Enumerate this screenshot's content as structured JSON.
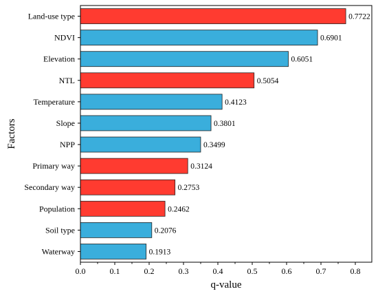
{
  "chart_data": {
    "type": "bar",
    "orientation": "horizontal",
    "categories": [
      "Land-use type",
      "NDVI",
      "Elevation",
      "NTL",
      "Temperature",
      "Slope",
      "NPP",
      "Primary way",
      "Secondary way",
      "Population",
      "Soil type",
      "Waterway"
    ],
    "values": [
      0.7722,
      0.6901,
      0.6051,
      0.5054,
      0.4123,
      0.3801,
      0.3499,
      0.3124,
      0.2753,
      0.2462,
      0.2076,
      0.1913
    ],
    "value_labels": [
      "0.7722",
      "0.6901",
      "0.6051",
      "0.5054",
      "0.4123",
      "0.3801",
      "0.3499",
      "0.3124",
      "0.2753",
      "0.2462",
      "0.2076",
      "0.1913"
    ],
    "bar_colors": [
      "#ff3b30",
      "#3aaedc",
      "#3aaedc",
      "#ff3b30",
      "#3aaedc",
      "#3aaedc",
      "#3aaedc",
      "#ff3b30",
      "#ff3b30",
      "#ff3b30",
      "#3aaedc",
      "#3aaedc"
    ],
    "xlabel": "q-value",
    "ylabel": "Factors",
    "xlim": [
      0,
      0.85
    ],
    "xticks": [
      0.0,
      0.1,
      0.2,
      0.3,
      0.4,
      0.5,
      0.6,
      0.7,
      0.8
    ],
    "xtick_labels": [
      "0.0",
      "0.1",
      "0.2",
      "0.3",
      "0.4",
      "0.5",
      "0.6",
      "0.7",
      "0.8"
    ],
    "grid": false,
    "legend": "none"
  }
}
